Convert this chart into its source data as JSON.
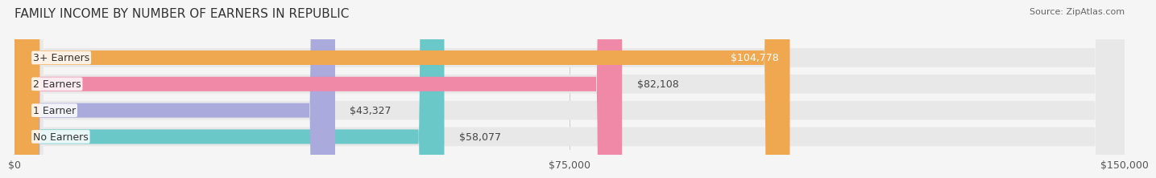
{
  "title": "FAMILY INCOME BY NUMBER OF EARNERS IN REPUBLIC",
  "source": "Source: ZipAtlas.com",
  "categories": [
    "No Earners",
    "1 Earner",
    "2 Earners",
    "3+ Earners"
  ],
  "values": [
    58077,
    43327,
    82108,
    104778
  ],
  "bar_colors": [
    "#6bc8c8",
    "#aaaadd",
    "#f088a8",
    "#f0a850"
  ],
  "bar_bg_color": "#e8e8e8",
  "value_labels": [
    "$58,077",
    "$43,327",
    "$82,108",
    "$104,778"
  ],
  "xlim": [
    0,
    150000
  ],
  "xticks": [
    0,
    75000,
    150000
  ],
  "xticklabels": [
    "$0",
    "$75,000",
    "$150,000"
  ],
  "title_fontsize": 11,
  "label_fontsize": 9,
  "value_fontsize": 9,
  "source_fontsize": 8,
  "background_color": "#f5f5f5",
  "bar_label_bg": "#ffffff",
  "last_bar_value_color": "#ffffff"
}
